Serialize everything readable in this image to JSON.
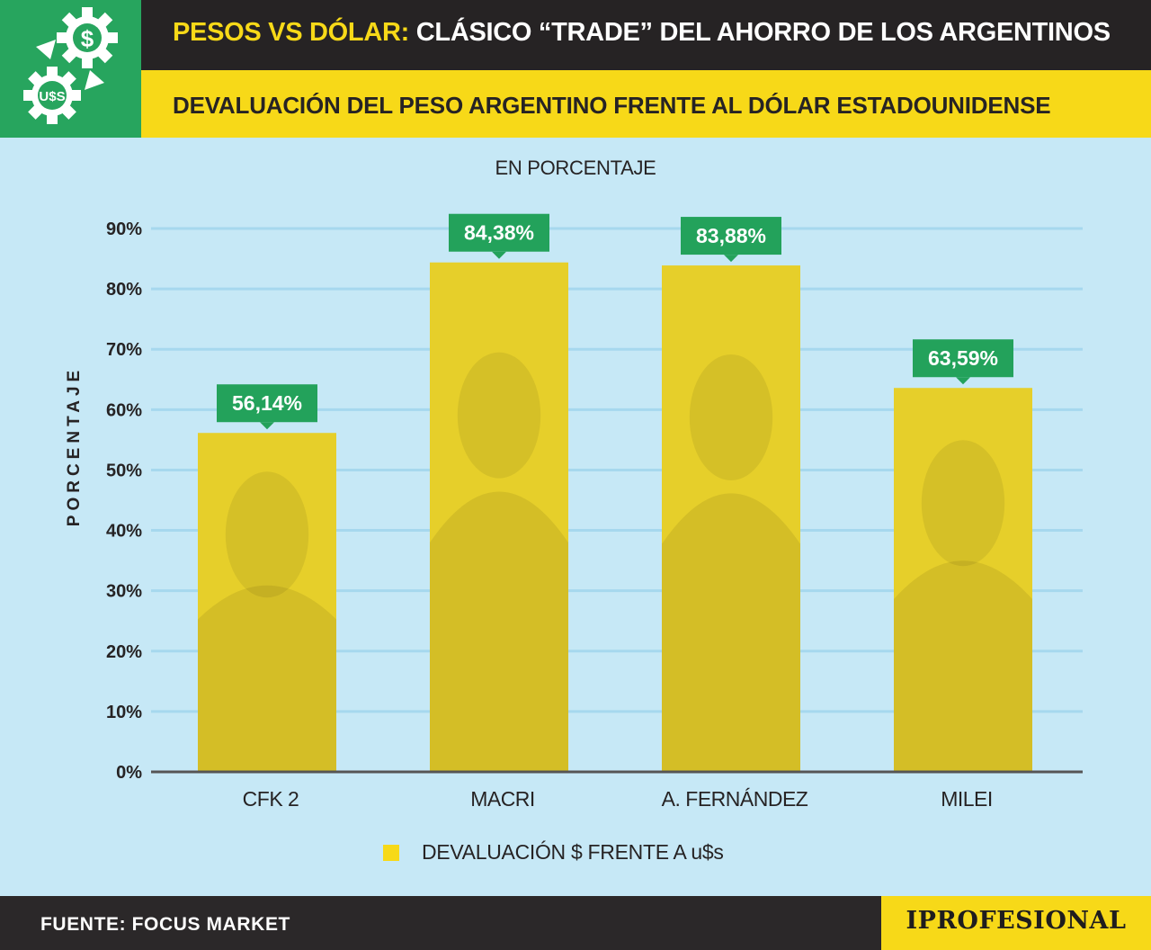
{
  "header": {
    "title_highlight": "PESOS VS DÓLAR:",
    "title_rest": "CLÁSICO “TRADE” DEL AHORRO DE LOS ARGENTINOS",
    "subtitle": "DEVALUACIÓN DEL PESO ARGENTINO FRENTE AL DÓLAR ESTADOUNIDENSE",
    "logo_icon": "gears-dollar-icon",
    "logo_text": "U$S",
    "logo_symbol": "$"
  },
  "unit_note": "EN PORCENTAJE",
  "chart_data": {
    "type": "bar",
    "title": "DEVALUACIÓN DEL PESO ARGENTINO FRENTE AL DÓLAR ESTADOUNIDENSE",
    "ylabel": "PORCENTAJE",
    "xlabel": "",
    "ylim": [
      0,
      90
    ],
    "yticks": [
      0,
      10,
      20,
      30,
      40,
      50,
      60,
      70,
      80,
      90
    ],
    "ytick_labels": [
      "0%",
      "10%",
      "20%",
      "30%",
      "40%",
      "50%",
      "60%",
      "70%",
      "80%",
      "90%"
    ],
    "categories": [
      "CFK 2",
      "MACRI",
      "A. FERNÁNDEZ",
      "MILEI"
    ],
    "series": [
      {
        "name": "DEVALUACIÓN $ FRENTE A u$s",
        "values": [
          56.14,
          84.38,
          83.88,
          63.59
        ],
        "labels": [
          "56,14%",
          "84,38%",
          "83,88%",
          "63,59%"
        ]
      }
    ],
    "grid": true,
    "legend_position": "bottom-center",
    "colors": {
      "bar": "#e6cf2a",
      "label_bg": "#23a25b",
      "label_text": "#ffffff",
      "grid": "#a6d8ee",
      "axis": "#555555",
      "background": "#c6e8f6"
    }
  },
  "legend": {
    "label": "DEVALUACIÓN $ FRENTE A u$s"
  },
  "footer": {
    "source": "FUENTE: FOCUS MARKET",
    "brand": "IPROFESIONAL"
  }
}
